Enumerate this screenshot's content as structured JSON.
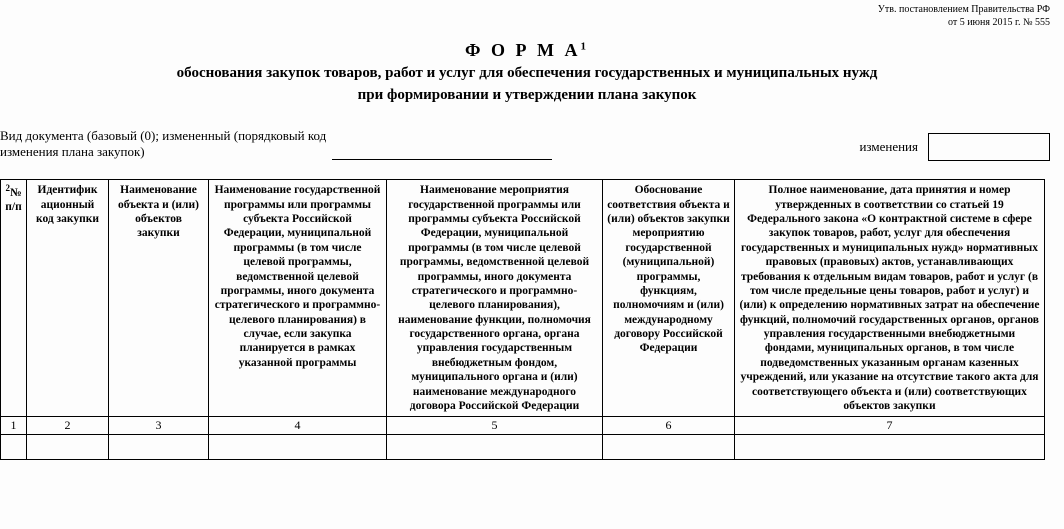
{
  "approval": {
    "line1": "Утв. постановлением Правительства РФ",
    "line2": "от 5 июня 2015 г. № 555"
  },
  "title": {
    "main": "Ф О Р М А",
    "footnote_mark": "1",
    "sub1": "обоснования закупок товаров, работ и услуг для обеспечения государственных и муниципальных нужд",
    "sub2": "при формировании и утверждении плана закупок"
  },
  "doc_type": {
    "prefix": "Вид документа (базовый (0); измененный (порядковый код",
    "suffix": "изменения плана закупок)",
    "changes_label": "изменения"
  },
  "table": {
    "headers": {
      "c1_sup": "2",
      "c1": "№ п/п",
      "c2": "Идентифик ационный код закупки",
      "c3": "Наименование объекта и (или) объектов закупки",
      "c4": "Наименование государственной программы или программы субъекта Российской Федерации, муниципальной программы (в том числе целевой программы, ведомственной целевой программы, иного документа стратегического и программно-целевого планирования) в случае, если закупка планируется в рамках указанной программы",
      "c5": "Наименование мероприятия государственной программы или программы субъекта Российской Федерации, муниципальной программы (в том числе целевой программы, ведомственной целевой программы, иного документа стратегического и программно-целевого планирования), наименование функции, полномочия государственного органа, органа управления государственным внебюджетным фондом, муниципального органа и (или) наименование международного договора Российской Федерации",
      "c6": "Обоснование соответствия объекта и (или) объектов закупки мероприятию государственной (муниципальной) программы, функциям, полномочиям и (или) международному договору Российской Федерации",
      "c7": "Полное наименование, дата принятия и номер утвержденных в соответствии со статьей 19 Федерального закона «О контрактной системе в сфере закупок товаров, работ, услуг для обеспечения государственных и муниципальных нужд» нормативных правовых (правовых) актов, устанавливающих требования к отдельным видам товаров, работ и услуг (в том числе предельные цены товаров, работ и услуг) и (или) к определению нормативных затрат на обеспечение функций, полномочий государственных органов, органов управления государственными внебюджетными фондами, муниципальных органов, в том числе подведомственных указанным органам казенных учреждений, или указание на отсутствие такого акта для соответствующего объекта и (или) соответствующих объектов закупки"
    },
    "numbers": [
      "1",
      "2",
      "3",
      "4",
      "5",
      "6",
      "7"
    ]
  },
  "colors": {
    "text": "#000000",
    "background": "#fdfdfd",
    "border": "#000000"
  }
}
